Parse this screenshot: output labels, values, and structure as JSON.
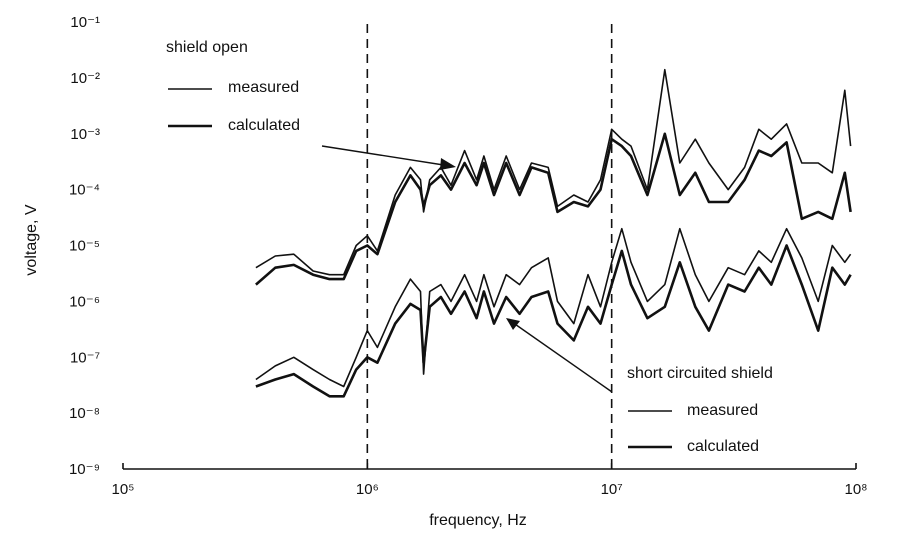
{
  "chart_data": {
    "type": "line",
    "xscale": "log",
    "yscale": "log",
    "xlim": [
      100000,
      100000000
    ],
    "ylim": [
      1e-09,
      0.1
    ],
    "xlabel": "frequency, Hz",
    "ylabel": "voltage, V",
    "x_ticks": [
      {
        "value": 100000,
        "label": "10⁵"
      },
      {
        "value": 1000000,
        "label": "10⁶"
      },
      {
        "value": 10000000,
        "label": "10⁷"
      },
      {
        "value": 100000000,
        "label": "10⁸"
      }
    ],
    "y_ticks": [
      {
        "value": 0.1,
        "label": "10⁻¹"
      },
      {
        "value": 0.01,
        "label": "10⁻²"
      },
      {
        "value": 0.001,
        "label": "10⁻³"
      },
      {
        "value": 0.0001,
        "label": "10⁻⁴"
      },
      {
        "value": 1e-05,
        "label": "10⁻⁵"
      },
      {
        "value": 1e-06,
        "label": "10⁻⁶"
      },
      {
        "value": 1e-07,
        "label": "10⁻⁷"
      },
      {
        "value": 1e-08,
        "label": "10⁻⁸"
      },
      {
        "value": 1e-09,
        "label": "10⁻⁹"
      }
    ],
    "reference_lines_x": [
      1000000,
      10000000
    ],
    "groups": [
      {
        "title": "shield open",
        "legend_position": "top-left",
        "series": [
          {
            "name": "measured",
            "style": "thin",
            "points": [
              [
                350000,
                4e-06
              ],
              [
                420000,
                6.5e-06
              ],
              [
                500000,
                7e-06
              ],
              [
                600000,
                3.5e-06
              ],
              [
                700000,
                3e-06
              ],
              [
                800000,
                3e-06
              ],
              [
                900000,
                1e-05
              ],
              [
                1000000,
                1.5e-05
              ],
              [
                1100000,
                8e-06
              ],
              [
                1300000,
                8e-05
              ],
              [
                1500000,
                0.00025
              ],
              [
                1650000,
                0.00015
              ],
              [
                1700000,
                4e-05
              ],
              [
                1800000,
                0.00015
              ],
              [
                2000000,
                0.00025
              ],
              [
                2200000,
                0.00012
              ],
              [
                2500000,
                0.0005
              ],
              [
                2800000,
                0.00015
              ],
              [
                3000000,
                0.0004
              ],
              [
                3300000,
                0.0001
              ],
              [
                3700000,
                0.0004
              ],
              [
                4200000,
                0.0001
              ],
              [
                4700000,
                0.0003
              ],
              [
                5500000,
                0.00025
              ],
              [
                6000000,
                5e-05
              ],
              [
                7000000,
                8e-05
              ],
              [
                8000000,
                6e-05
              ],
              [
                9000000,
                0.00015
              ],
              [
                10000000,
                0.0012
              ],
              [
                11000000,
                0.0008
              ],
              [
                12000000,
                0.0006
              ],
              [
                14000000,
                0.0001
              ],
              [
                16500000,
                0.014
              ],
              [
                19000000,
                0.0003
              ],
              [
                22000000,
                0.0008
              ],
              [
                25000000,
                0.0003
              ],
              [
                30000000,
                0.0001
              ],
              [
                35000000,
                0.00025
              ],
              [
                40000000,
                0.0012
              ],
              [
                45000000,
                0.0008
              ],
              [
                52000000,
                0.0015
              ],
              [
                60000000,
                0.0003
              ],
              [
                70000000,
                0.0003
              ],
              [
                80000000,
                0.0002
              ],
              [
                90000000,
                0.006
              ],
              [
                95000000,
                0.0006
              ]
            ]
          },
          {
            "name": "calculated",
            "style": "thick",
            "points": [
              [
                350000,
                2e-06
              ],
              [
                420000,
                4e-06
              ],
              [
                500000,
                4.5e-06
              ],
              [
                600000,
                3e-06
              ],
              [
                700000,
                2.5e-06
              ],
              [
                800000,
                2.5e-06
              ],
              [
                900000,
                8e-06
              ],
              [
                1000000,
                1e-05
              ],
              [
                1100000,
                7e-06
              ],
              [
                1300000,
                6e-05
              ],
              [
                1500000,
                0.00018
              ],
              [
                1650000,
                0.0001
              ],
              [
                1700000,
                5e-05
              ],
              [
                1800000,
                0.00012
              ],
              [
                2000000,
                0.00018
              ],
              [
                2200000,
                0.0001
              ],
              [
                2500000,
                0.0003
              ],
              [
                2800000,
                0.00012
              ],
              [
                3000000,
                0.0003
              ],
              [
                3300000,
                8e-05
              ],
              [
                3700000,
                0.0003
              ],
              [
                4200000,
                8e-05
              ],
              [
                4700000,
                0.00025
              ],
              [
                5500000,
                0.0002
              ],
              [
                6000000,
                4e-05
              ],
              [
                7000000,
                6e-05
              ],
              [
                8000000,
                5e-05
              ],
              [
                9000000,
                0.0001
              ],
              [
                10000000,
                0.0008
              ],
              [
                11000000,
                0.0006
              ],
              [
                12000000,
                0.0004
              ],
              [
                14000000,
                8e-05
              ],
              [
                16500000,
                0.001
              ],
              [
                19000000,
                8e-05
              ],
              [
                22000000,
                0.0002
              ],
              [
                25000000,
                6e-05
              ],
              [
                30000000,
                6e-05
              ],
              [
                35000000,
                0.00015
              ],
              [
                40000000,
                0.0005
              ],
              [
                45000000,
                0.0004
              ],
              [
                52000000,
                0.0007
              ],
              [
                60000000,
                3e-05
              ],
              [
                70000000,
                4e-05
              ],
              [
                80000000,
                3e-05
              ],
              [
                90000000,
                0.0002
              ],
              [
                95000000,
                4e-05
              ]
            ]
          }
        ]
      },
      {
        "title": "short circuited shield",
        "legend_position": "bottom-right",
        "series": [
          {
            "name": "measured",
            "style": "thin",
            "points": [
              [
                350000,
                4e-08
              ],
              [
                420000,
                7e-08
              ],
              [
                500000,
                1e-07
              ],
              [
                600000,
                6e-08
              ],
              [
                700000,
                4e-08
              ],
              [
                800000,
                3e-08
              ],
              [
                900000,
                1e-07
              ],
              [
                1000000,
                3e-07
              ],
              [
                1100000,
                1.5e-07
              ],
              [
                1300000,
                8e-07
              ],
              [
                1500000,
                2.5e-06
              ],
              [
                1650000,
                1.5e-06
              ],
              [
                1700000,
                5e-08
              ],
              [
                1800000,
                1.5e-06
              ],
              [
                2000000,
                2e-06
              ],
              [
                2200000,
                1e-06
              ],
              [
                2500000,
                3e-06
              ],
              [
                2800000,
                1e-06
              ],
              [
                3000000,
                3e-06
              ],
              [
                3300000,
                8e-07
              ],
              [
                3700000,
                3e-06
              ],
              [
                4200000,
                2e-06
              ],
              [
                4700000,
                4e-06
              ],
              [
                5500000,
                6e-06
              ],
              [
                6000000,
                1e-06
              ],
              [
                7000000,
                4e-07
              ],
              [
                8000000,
                3e-06
              ],
              [
                9000000,
                8e-07
              ],
              [
                10000000,
                5e-06
              ],
              [
                11000000,
                2e-05
              ],
              [
                12000000,
                5e-06
              ],
              [
                14000000,
                1e-06
              ],
              [
                16500000,
                2e-06
              ],
              [
                19000000,
                2e-05
              ],
              [
                22000000,
                3e-06
              ],
              [
                25000000,
                1e-06
              ],
              [
                30000000,
                4e-06
              ],
              [
                35000000,
                3e-06
              ],
              [
                40000000,
                8e-06
              ],
              [
                45000000,
                5e-06
              ],
              [
                52000000,
                2e-05
              ],
              [
                60000000,
                6e-06
              ],
              [
                70000000,
                1e-06
              ],
              [
                80000000,
                1e-05
              ],
              [
                90000000,
                5e-06
              ],
              [
                95000000,
                7e-06
              ]
            ]
          },
          {
            "name": "calculated",
            "style": "thick",
            "points": [
              [
                350000,
                3e-08
              ],
              [
                420000,
                4e-08
              ],
              [
                500000,
                5e-08
              ],
              [
                600000,
                3e-08
              ],
              [
                700000,
                2e-08
              ],
              [
                800000,
                2e-08
              ],
              [
                900000,
                6e-08
              ],
              [
                1000000,
                1e-07
              ],
              [
                1100000,
                8e-08
              ],
              [
                1300000,
                4e-07
              ],
              [
                1500000,
                9e-07
              ],
              [
                1650000,
                7e-07
              ],
              [
                1700000,
                8e-08
              ],
              [
                1800000,
                8e-07
              ],
              [
                2000000,
                1.2e-06
              ],
              [
                2200000,
                6e-07
              ],
              [
                2500000,
                1.5e-06
              ],
              [
                2800000,
                5e-07
              ],
              [
                3000000,
                1.5e-06
              ],
              [
                3300000,
                4e-07
              ],
              [
                3700000,
                1.2e-06
              ],
              [
                4200000,
                6e-07
              ],
              [
                4700000,
                1.2e-06
              ],
              [
                5500000,
                1.5e-06
              ],
              [
                6000000,
                4e-07
              ],
              [
                7000000,
                2e-07
              ],
              [
                8000000,
                8e-07
              ],
              [
                9000000,
                4e-07
              ],
              [
                10000000,
                2e-06
              ],
              [
                11000000,
                8e-06
              ],
              [
                12000000,
                2e-06
              ],
              [
                14000000,
                5e-07
              ],
              [
                16500000,
                8e-07
              ],
              [
                19000000,
                5e-06
              ],
              [
                22000000,
                8e-07
              ],
              [
                25000000,
                3e-07
              ],
              [
                30000000,
                2e-06
              ],
              [
                35000000,
                1.5e-06
              ],
              [
                40000000,
                4e-06
              ],
              [
                45000000,
                2e-06
              ],
              [
                52000000,
                1e-05
              ],
              [
                60000000,
                2e-06
              ],
              [
                70000000,
                3e-07
              ],
              [
                80000000,
                4e-06
              ],
              [
                90000000,
                2e-06
              ],
              [
                95000000,
                3e-06
              ]
            ]
          }
        ]
      }
    ]
  }
}
